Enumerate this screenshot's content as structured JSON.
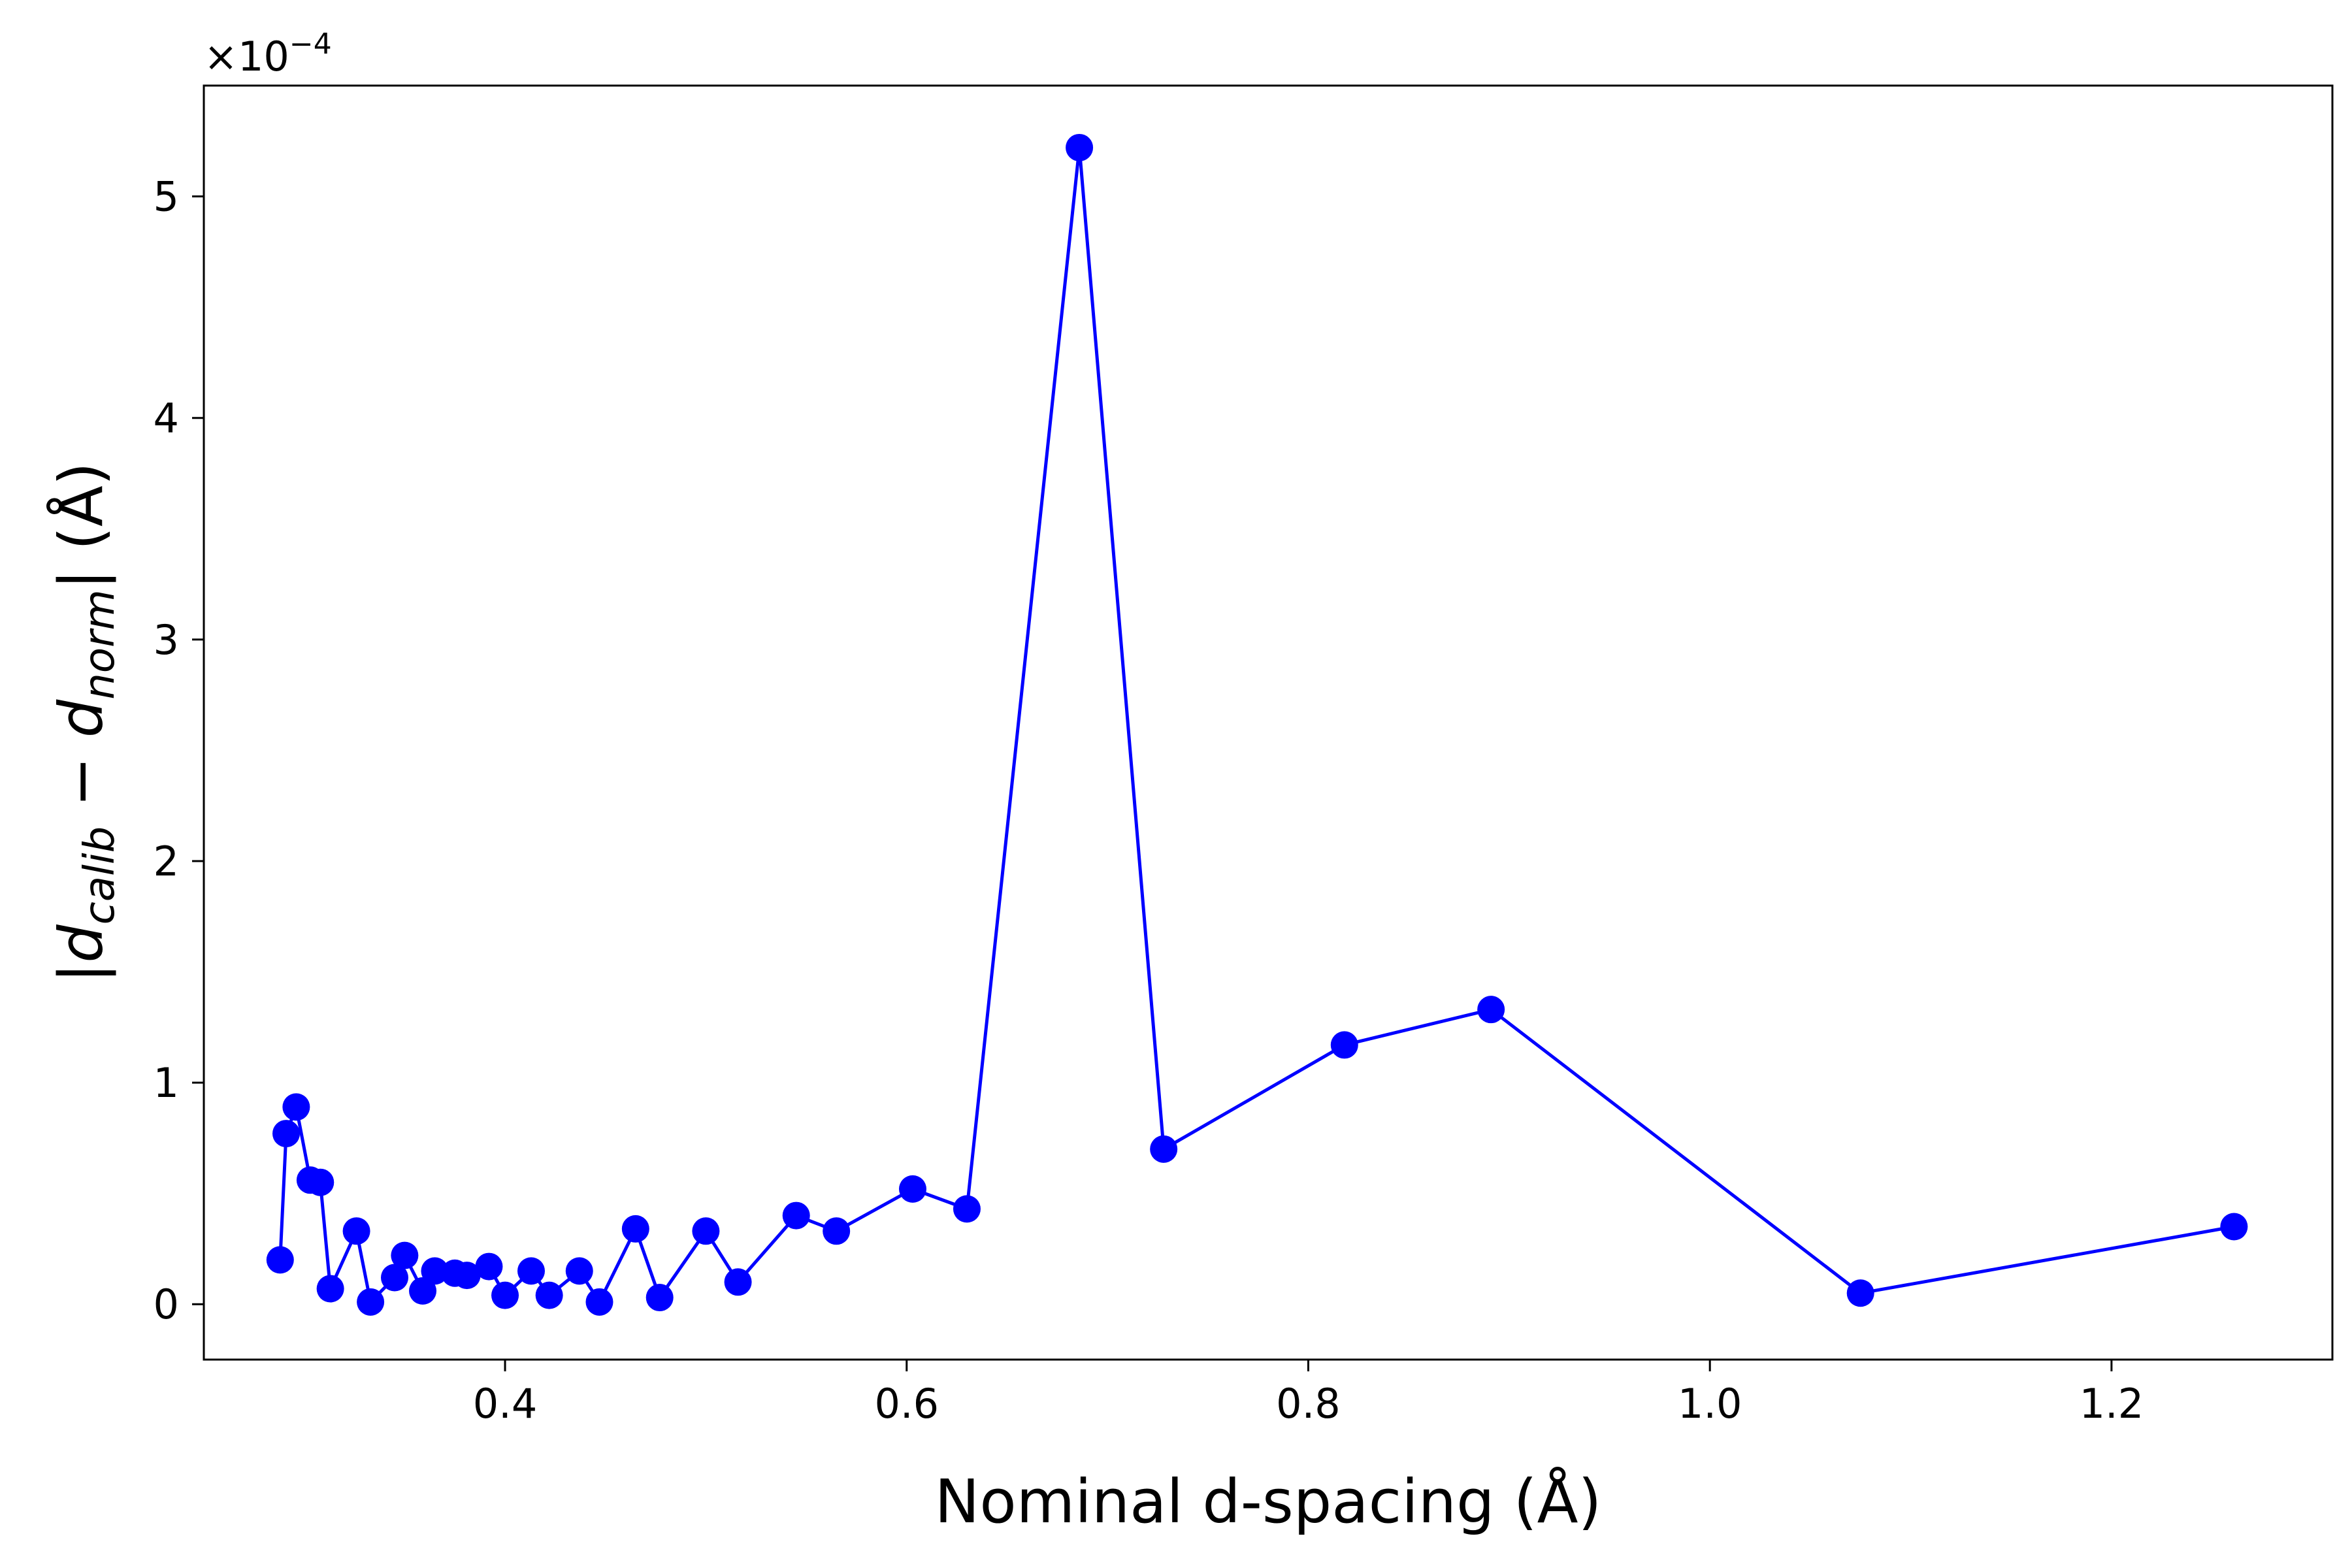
{
  "chart_data": {
    "type": "line",
    "title": "",
    "xlabel": "Nominal d-spacing (Å)",
    "ylabel": {
      "open": "|",
      "d1": "d",
      "sub1": "calib",
      "minus": " − ",
      "d2": "d",
      "sub2": "norm",
      "close": "| (Å)"
    },
    "y_offset_label": {
      "base": "×10",
      "exp": "−4"
    },
    "y_scale_factor": 0.0001,
    "xlim": [
      0.25,
      1.31
    ],
    "ylim": [
      -0.25,
      5.5
    ],
    "xticks": [
      0.4,
      0.6,
      0.8,
      1.0,
      1.2
    ],
    "xtick_labels": [
      "0.4",
      "0.6",
      "0.8",
      "1.0",
      "1.2"
    ],
    "yticks": [
      0,
      1,
      2,
      3,
      4,
      5
    ],
    "ytick_labels": [
      "0",
      "1",
      "2",
      "3",
      "4",
      "5"
    ],
    "grid": false,
    "legend": "none",
    "series": [
      {
        "color": "#0000ff",
        "marker": "circle",
        "points": [
          [
            0.288,
            0.2
          ],
          [
            0.291,
            0.77
          ],
          [
            0.296,
            0.89
          ],
          [
            0.303,
            0.56
          ],
          [
            0.308,
            0.55
          ],
          [
            0.313,
            0.07
          ],
          [
            0.326,
            0.33
          ],
          [
            0.333,
            0.01
          ],
          [
            0.345,
            0.12
          ],
          [
            0.35,
            0.22
          ],
          [
            0.359,
            0.06
          ],
          [
            0.365,
            0.15
          ],
          [
            0.375,
            0.14
          ],
          [
            0.381,
            0.13
          ],
          [
            0.392,
            0.17
          ],
          [
            0.4,
            0.04
          ],
          [
            0.413,
            0.15
          ],
          [
            0.422,
            0.04
          ],
          [
            0.437,
            0.15
          ],
          [
            0.447,
            0.01
          ],
          [
            0.465,
            0.34
          ],
          [
            0.477,
            0.03
          ],
          [
            0.5,
            0.33
          ],
          [
            0.516,
            0.1
          ],
          [
            0.545,
            0.4
          ],
          [
            0.565,
            0.33
          ],
          [
            0.603,
            0.52
          ],
          [
            0.63,
            0.43
          ],
          [
            0.686,
            5.22
          ],
          [
            0.728,
            0.7
          ],
          [
            0.818,
            1.17
          ],
          [
            0.891,
            1.33
          ],
          [
            1.075,
            0.05
          ],
          [
            1.261,
            0.35
          ]
        ]
      }
    ]
  }
}
